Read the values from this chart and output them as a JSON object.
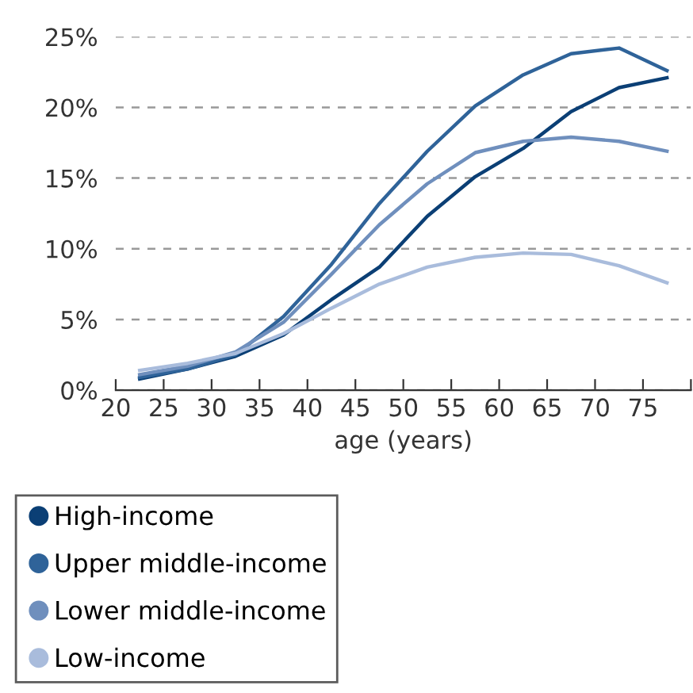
{
  "chart_data": {
    "type": "line",
    "xlabel": "age (years)",
    "x": [
      22.5,
      27.5,
      32.5,
      37.5,
      42.5,
      47.5,
      52.5,
      57.5,
      62.5,
      67.5,
      72.5,
      77.5
    ],
    "series": [
      {
        "name": "High-income",
        "color": "#0b3f75",
        "values": [
          0.8,
          1.5,
          2.4,
          3.9,
          6.4,
          8.7,
          12.3,
          15.1,
          17.1,
          19.7,
          21.4,
          22.1
        ]
      },
      {
        "name": "Upper middle-income",
        "color": "#2f6399",
        "values": [
          0.9,
          1.5,
          2.5,
          5.2,
          8.9,
          13.2,
          16.9,
          20.1,
          22.3,
          23.8,
          24.2,
          22.6
        ]
      },
      {
        "name": "Lower middle-income",
        "color": "#6f8fbd",
        "values": [
          1.1,
          1.7,
          2.7,
          4.8,
          8.2,
          11.7,
          14.6,
          16.8,
          17.6,
          17.9,
          17.6,
          16.9
        ]
      },
      {
        "name": "Low-income",
        "color": "#a9bcdc",
        "values": [
          1.4,
          1.9,
          2.6,
          4.0,
          5.8,
          7.5,
          8.7,
          9.4,
          9.7,
          9.6,
          8.8,
          7.6
        ]
      }
    ],
    "xlim": [
      20,
      80
    ],
    "xticks": [
      20,
      25,
      30,
      35,
      40,
      45,
      50,
      55,
      60,
      65,
      70,
      75,
      {
        "value": 80,
        "label": null
      }
    ],
    "ylim": [
      0,
      25
    ],
    "yticks": [
      {
        "value": 0,
        "label": "0%"
      },
      {
        "value": 5,
        "label": "5%"
      },
      {
        "value": 10,
        "label": "10%"
      },
      {
        "value": 15,
        "label": "15%"
      },
      {
        "value": 20,
        "label": "20%"
      },
      {
        "value": 25,
        "label": "25%"
      }
    ],
    "grid": "y",
    "legend": "bottom",
    "marker": "none",
    "line_style": "solid"
  }
}
